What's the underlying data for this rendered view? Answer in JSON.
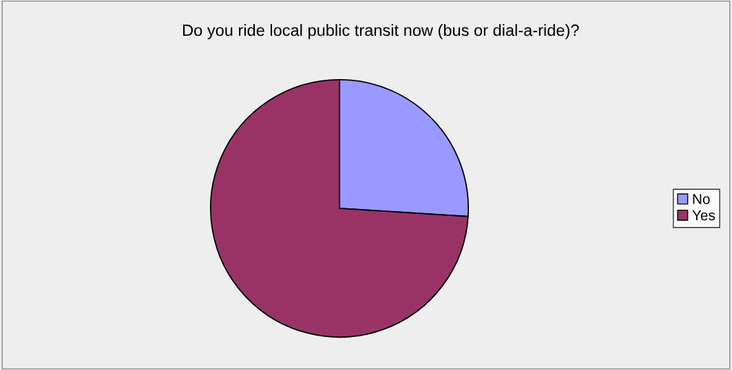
{
  "chart_data": {
    "type": "pie",
    "title": "Do you ride local public transit now (bus or dial-a-ride)?",
    "categories": [
      "No",
      "Yes"
    ],
    "values": [
      26,
      74
    ],
    "colors": [
      "#9999ff",
      "#993366"
    ],
    "legend": "right"
  }
}
